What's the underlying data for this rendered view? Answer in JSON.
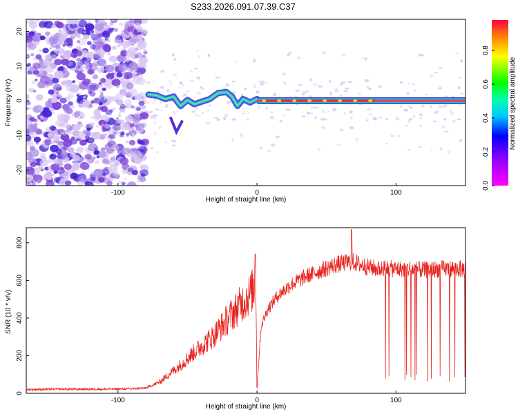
{
  "title": "S233.2026.091.07.39.C37",
  "chart_data": [
    {
      "type": "heatmap",
      "xlabel": "Height of straight line (km)",
      "ylabel": "Frequency (Hz)",
      "xlim": [
        -166,
        150
      ],
      "ylim": [
        -24.5,
        23.5
      ],
      "xticks": [
        -100,
        0,
        100
      ],
      "yticks": [
        -20,
        -10,
        0,
        10,
        20
      ],
      "colorbar": {
        "label": "Normalized spectral amplitude",
        "range": [
          0,
          0.98
        ],
        "ticks": [
          0,
          0.2,
          0.4,
          0.6,
          0.8
        ],
        "colormap": "rainbow (magenta-blue-cyan-green-yellow-red)"
      },
      "regions": {
        "noise_below_km": -80,
        "signal_from_km": -80,
        "signal_frequency_hz": 0,
        "strong_band_km": [
          5,
          85
        ]
      },
      "colors": [
        "#d8c4f2",
        "#a98ae8",
        "#7a3fd6",
        "#3f21d8"
      ]
    },
    {
      "type": "line",
      "xlabel": "Height of straight line (km)",
      "ylabel": "SNR (10 * v/v)",
      "xlim": [
        -166,
        150
      ],
      "ylim": [
        0,
        880
      ],
      "xticks": [
        -100,
        0,
        100
      ],
      "yticks": [
        0,
        200,
        400,
        600,
        800
      ],
      "series": [
        {
          "color": "#e8221c",
          "x": [
            -166,
            -140,
            -110,
            -90,
            -80,
            -70,
            -62,
            -55,
            -48,
            -40,
            -32,
            -25,
            -18,
            -12,
            -6,
            -2,
            -1,
            0,
            3,
            8,
            15,
            25,
            35,
            45,
            55,
            62,
            68,
            72,
            80,
            88,
            90,
            100,
            110,
            120,
            130,
            140,
            150
          ],
          "values": [
            20,
            22,
            22,
            24,
            28,
            60,
            110,
            150,
            200,
            250,
            300,
            360,
            420,
            470,
            520,
            560,
            740,
            30,
            360,
            450,
            520,
            580,
            620,
            650,
            680,
            690,
            700,
            690,
            670,
            660,
            665,
            660,
            660,
            655,
            660,
            662,
            660
          ]
        }
      ]
    }
  ]
}
